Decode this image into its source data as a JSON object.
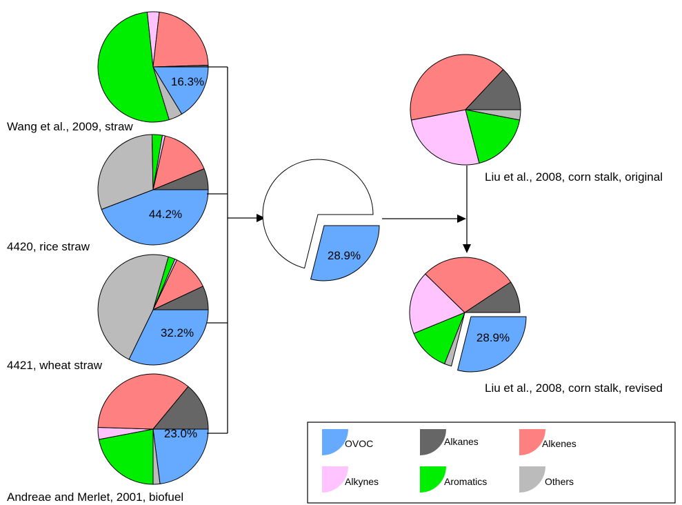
{
  "chart_data": {
    "type": "pie",
    "colors": {
      "OVOC": "#66AAFF",
      "Alkanes": "#666666",
      "Alkenes": "#FF8080",
      "Alkynes": "#FFC4FF",
      "Aromatics": "#00EE00",
      "Others": "#BBBBBB"
    },
    "legend": {
      "placement": "bottom-right",
      "items": [
        "OVOC",
        "Alkanes",
        "Alkenes",
        "Alkynes",
        "Aromatics",
        "Others"
      ]
    },
    "pies": [
      {
        "id": "wang",
        "caption": "Wang et al., 2009, straw",
        "label": "16.3%",
        "slices": [
          {
            "category": "OVOC",
            "value": 16.3
          },
          {
            "category": "Others",
            "value": 4.0
          },
          {
            "category": "Aromatics",
            "value": 53.0
          },
          {
            "category": "Alkynes",
            "value": 3.5
          },
          {
            "category": "Alkenes",
            "value": 22.7
          },
          {
            "category": "Alkanes",
            "value": 0.5
          }
        ]
      },
      {
        "id": "rice",
        "caption": "4420, rice straw",
        "label": "44.2%",
        "slices": [
          {
            "category": "OVOC",
            "value": 44.2
          },
          {
            "category": "Others",
            "value": 30.5
          },
          {
            "category": "Aromatics",
            "value": 3.0
          },
          {
            "category": "Alkynes",
            "value": 0.8
          },
          {
            "category": "Alkenes",
            "value": 15.3
          },
          {
            "category": "Alkanes",
            "value": 6.2
          }
        ]
      },
      {
        "id": "wheat",
        "caption": "4421, wheat straw",
        "label": "32.2%",
        "slices": [
          {
            "category": "OVOC",
            "value": 32.2
          },
          {
            "category": "Others",
            "value": 47.3
          },
          {
            "category": "Aromatics",
            "value": 2.0
          },
          {
            "category": "Alkynes",
            "value": 0.6
          },
          {
            "category": "Alkenes",
            "value": 10.9
          },
          {
            "category": "Alkanes",
            "value": 7.0
          }
        ]
      },
      {
        "id": "andreae",
        "caption": "Andreae and Merlet, 2001, biofuel",
        "label": "23.0%",
        "slices": [
          {
            "category": "OVOC",
            "value": 23.0
          },
          {
            "category": "Others",
            "value": 2.0
          },
          {
            "category": "Aromatics",
            "value": 22.0
          },
          {
            "category": "Alkynes",
            "value": 3.5
          },
          {
            "category": "Alkenes",
            "value": 35.5
          },
          {
            "category": "Alkanes",
            "value": 14.0
          }
        ]
      },
      {
        "id": "average",
        "caption": "",
        "label": "28.9%",
        "slices": [
          {
            "category": "OVOC",
            "value": 28.9
          }
        ]
      },
      {
        "id": "liu_original",
        "caption": "Liu et al., 2008, corn stalk, original",
        "label": "",
        "slices": [
          {
            "category": "Others",
            "value": 3.0
          },
          {
            "category": "Aromatics",
            "value": 18.0
          },
          {
            "category": "Alkynes",
            "value": 26.0
          },
          {
            "category": "Alkenes",
            "value": 40.0
          },
          {
            "category": "Alkanes",
            "value": 13.0
          }
        ]
      },
      {
        "id": "liu_revised",
        "caption": "Liu et al., 2008, corn stalk, revised",
        "label": "28.9%",
        "slices": [
          {
            "category": "OVOC",
            "value": 28.9
          },
          {
            "category": "Others",
            "value": 2.1
          },
          {
            "category": "Aromatics",
            "value": 12.8
          },
          {
            "category": "Alkynes",
            "value": 18.5
          },
          {
            "category": "Alkenes",
            "value": 28.4
          },
          {
            "category": "Alkanes",
            "value": 9.3
          }
        ]
      }
    ]
  }
}
